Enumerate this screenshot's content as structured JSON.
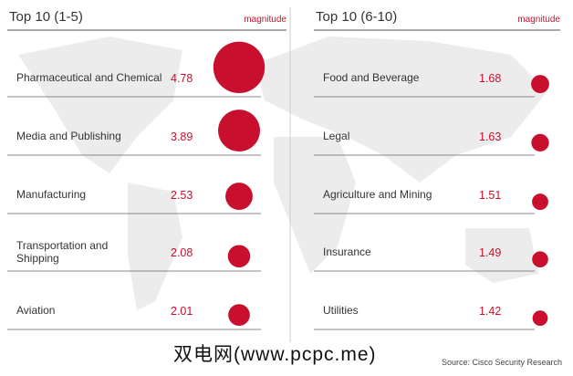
{
  "chart_data": [
    {
      "type": "bubble",
      "title": "Top 10 (1-5)",
      "size_label": "magnitude",
      "color": "#c8102e",
      "categories": [
        "Pharmaceutical and Chemical",
        "Media and Publishing",
        "Manufacturing",
        "Transportation and Shipping",
        "Aviation"
      ],
      "values": [
        4.78,
        3.89,
        2.53,
        2.08,
        2.01
      ]
    },
    {
      "type": "bubble",
      "title": "Top 10 (6-10)",
      "size_label": "magnitude",
      "color": "#c8102e",
      "categories": [
        "Food and Beverage",
        "Legal",
        "Agriculture and Mining",
        "Insurance",
        "Utilities"
      ],
      "values": [
        1.68,
        1.63,
        1.51,
        1.49,
        1.42
      ]
    }
  ],
  "source": "Source: Cisco Security Research",
  "watermark": "双电网(www.pcpc.me)"
}
